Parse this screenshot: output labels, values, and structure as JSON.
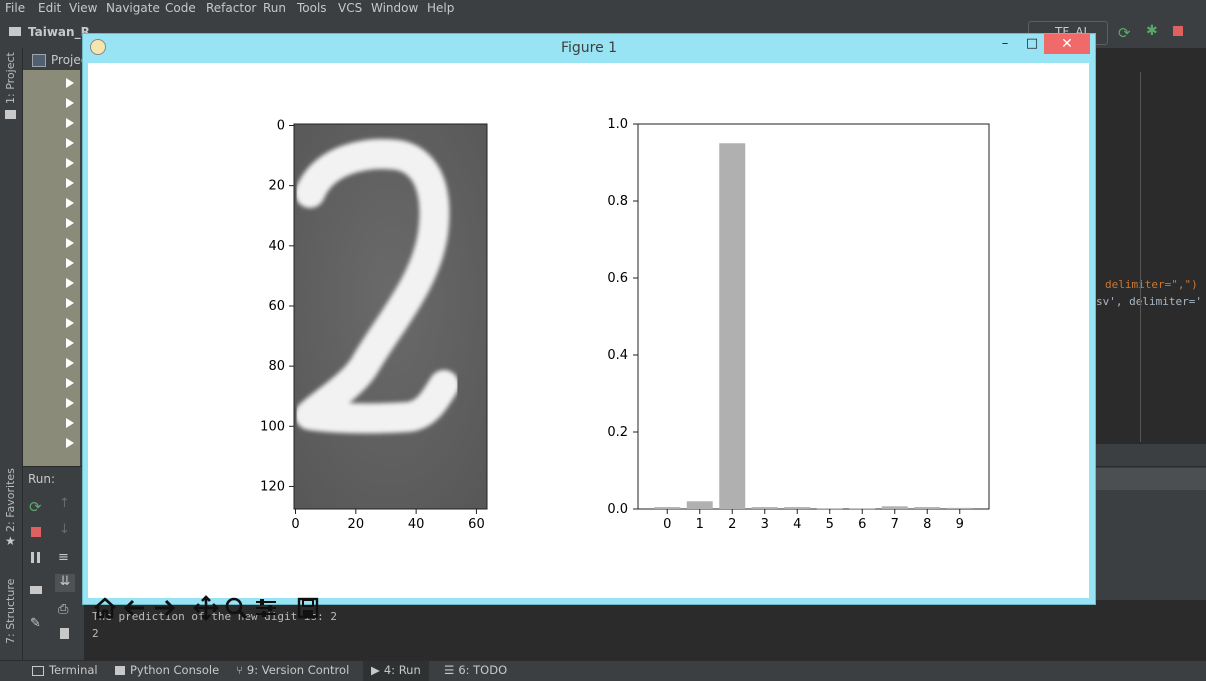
{
  "menu": [
    "File",
    "Edit",
    "View",
    "Navigate",
    "Code",
    "Refactor",
    "Run",
    "Tools",
    "VCS",
    "Window",
    "Help"
  ],
  "nav": {
    "project_crumb": "Taiwan_R",
    "run_config": "TF_AI"
  },
  "sidebar_left": {
    "project_tab": "1: Project",
    "favorites_tab": "2: Favorites",
    "structure_tab": "7: Structure"
  },
  "project_panel": {
    "label": "Projec"
  },
  "run_panel": {
    "title": "Run:"
  },
  "editor_snippets": {
    "line1": "delimiter=\",\")",
    "line2": "sv', delimiter='"
  },
  "figure": {
    "title": "Figure 1",
    "image_axis": {
      "y_ticks": [
        "0",
        "20",
        "40",
        "60",
        "80",
        "100",
        "120"
      ],
      "x_ticks": [
        "0",
        "20",
        "40",
        "60"
      ],
      "digit": "2"
    },
    "toolbar": [
      "home-icon",
      "back-arrow-icon",
      "forward-arrow-icon",
      "pan-icon",
      "zoom-icon",
      "configure-icon",
      "save-icon"
    ]
  },
  "chart_data": {
    "type": "bar",
    "categories": [
      "0",
      "1",
      "2",
      "3",
      "4",
      "5",
      "6",
      "7",
      "8",
      "9"
    ],
    "values": [
      0.005,
      0.02,
      0.95,
      0.005,
      0.005,
      0.001,
      0.001,
      0.007,
      0.005,
      0.003
    ],
    "ylim": [
      0,
      1.0
    ],
    "y_ticks": [
      "0.0",
      "0.2",
      "0.4",
      "0.6",
      "0.8",
      "1.0"
    ],
    "bar_color": "#b0b0b0"
  },
  "console": {
    "line1": "The prediction of the new digit is: 2",
    "line2": "2"
  },
  "statusbar": {
    "terminal": "Terminal",
    "python_console": "Python Console",
    "version_control": "9: Version Control",
    "run": "4: Run",
    "todo": "6: TODO"
  }
}
